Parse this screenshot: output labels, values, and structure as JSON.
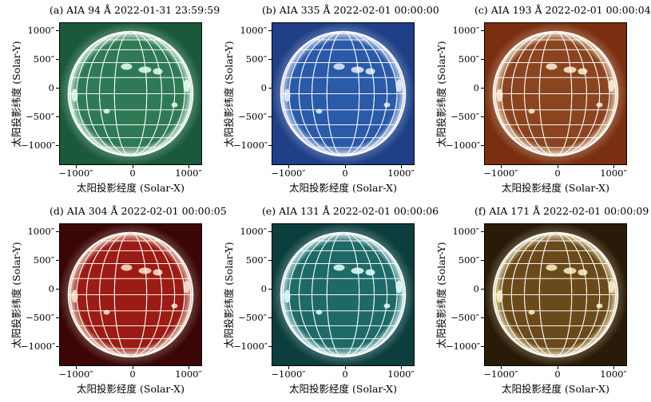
{
  "panels": [
    {
      "title": "(a) AIA 94 Å 2022-01-31 23:59:59",
      "bg": "#1a5a3a",
      "disk": "#2f7a55",
      "bright": "#e8fff2"
    },
    {
      "title": "(b) AIA 335 Å 2022-02-01 00:00:00",
      "bg": "#1f3f86",
      "disk": "#2a5aa8",
      "bright": "#e6f0ff"
    },
    {
      "title": "(c) AIA 193 Å 2022-02-01 00:00:04",
      "bg": "#7a2f10",
      "disk": "#8a4520",
      "bright": "#fff1d8"
    },
    {
      "title": "(d) AIA 304 Å 2022-02-01 00:00:05",
      "bg": "#3a0606",
      "disk": "#9a1c14",
      "bright": "#ffe6d0"
    },
    {
      "title": "(e) AIA 131 Å 2022-02-01 00:00:06",
      "bg": "#0d3e3e",
      "disk": "#1d6a68",
      "bright": "#e6ffff"
    },
    {
      "title": "(f) AIA 171 Å 2022-02-01 00:00:09",
      "bg": "#2a1a08",
      "disk": "#6a4a1a",
      "bright": "#fff3c8"
    }
  ],
  "axes": {
    "xlabel": "太阳投影经度 (Solar-X)",
    "ylabel": "太阳投影纬度 (Solar-Y)",
    "xticks": [
      "−1000″",
      "0",
      "1000″"
    ],
    "yticks": [
      "1000″",
      "500″",
      "0",
      "−500″",
      "−1000″"
    ]
  }
}
